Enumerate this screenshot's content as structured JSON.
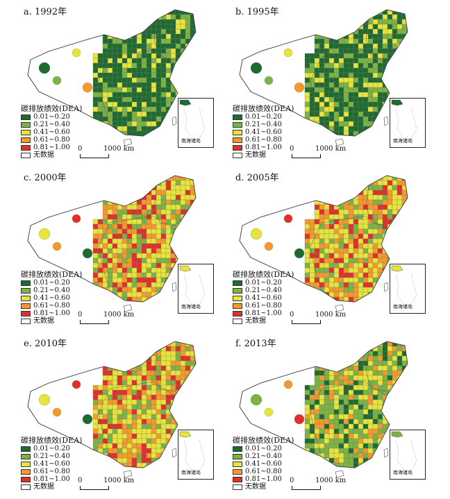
{
  "legend": {
    "title": "碳排放绩效(DEA)",
    "items": [
      {
        "label": "0.01~0.20",
        "color": "#1e6b30"
      },
      {
        "label": "0.21~0.40",
        "color": "#7cb342"
      },
      {
        "label": "0.41~0.60",
        "color": "#e8e53a"
      },
      {
        "label": "0.61~0.80",
        "color": "#f39a2a"
      },
      {
        "label": "0.81~1.00",
        "color": "#e0302a"
      },
      {
        "label": "无数据",
        "color": "#ffffff"
      }
    ]
  },
  "scale": {
    "zero": "0",
    "max": "1000 km"
  },
  "inset_label": "南海诸岛",
  "panels": [
    {
      "id": "a",
      "title": "a. 1992年",
      "dominant_level": 0
    },
    {
      "id": "b",
      "title": "b. 1995年",
      "dominant_level": 0
    },
    {
      "id": "c",
      "title": "c. 2000年",
      "dominant_level": 2
    },
    {
      "id": "d",
      "title": "d. 2005年",
      "dominant_level": 2
    },
    {
      "id": "e",
      "title": "e. 2010年",
      "dominant_level": 2
    },
    {
      "id": "f",
      "title": "f. 2013年",
      "dominant_level": 1
    }
  ]
}
